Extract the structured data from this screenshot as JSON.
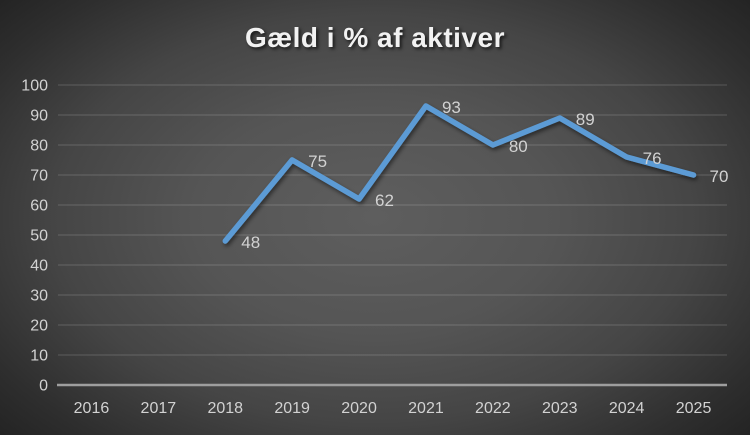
{
  "chart_data": {
    "type": "line",
    "title": "Gæld i % af aktiver",
    "categories": [
      "2016",
      "2017",
      "2018",
      "2019",
      "2020",
      "2021",
      "2022",
      "2023",
      "2024",
      "2025"
    ],
    "values": [
      null,
      null,
      48,
      75,
      62,
      93,
      80,
      89,
      76,
      70
    ],
    "data_labels": [
      null,
      null,
      "48",
      "75",
      "62",
      "93",
      "80",
      "89",
      "76",
      "70"
    ],
    "xlabel": "",
    "ylabel": "",
    "ylim": [
      0,
      100
    ],
    "ytick_step": 10,
    "ytick_labels": [
      "0",
      "10",
      "20",
      "30",
      "40",
      "50",
      "60",
      "70",
      "80",
      "90",
      "100"
    ],
    "grid": true,
    "legend": false,
    "colors": {
      "line": "#5b9bd5",
      "data_label_text": "#d9d9d9",
      "tick_text": "#d0d0d0",
      "title_text": "#f2f2f2",
      "gridline": "rgba(255,255,255,0.12)",
      "axis_line": "#9e9e9e",
      "background_center": "#5e5e5e",
      "background_edge": "#222222"
    }
  }
}
